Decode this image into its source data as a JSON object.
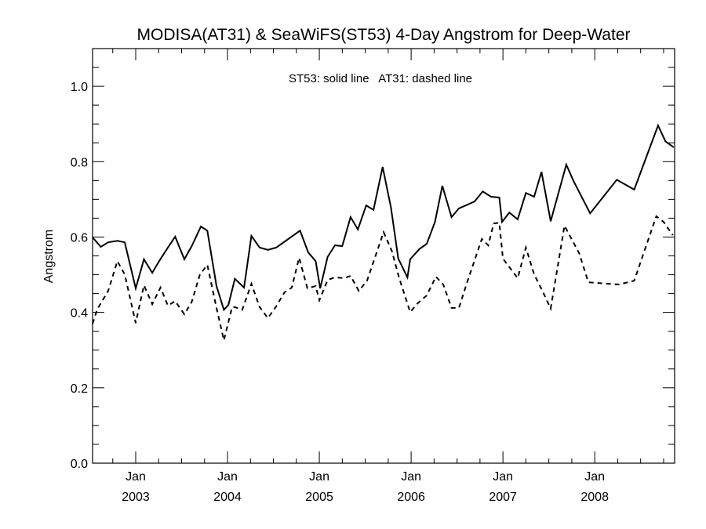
{
  "chart_data": {
    "type": "line",
    "title": "MODISA(AT31) & SeaWiFS(ST53) 4-Day Angstrom for Deep-Water",
    "annotation": "ST53: solid line   AT31: dashed line",
    "xlabel": "",
    "ylabel": "Angstrom",
    "xlim": [
      2002.53,
      2008.87
    ],
    "ylim": [
      0.0,
      1.1
    ],
    "grid": false,
    "y_ticks": [
      {
        "value": 0.0,
        "label": "0.0"
      },
      {
        "value": 0.2,
        "label": "0.2"
      },
      {
        "value": 0.4,
        "label": "0.4"
      },
      {
        "value": 0.6,
        "label": "0.6"
      },
      {
        "value": 0.8,
        "label": "0.8"
      },
      {
        "value": 1.0,
        "label": "1.0"
      }
    ],
    "y_minor_step": 0.05,
    "x_ticks": [
      {
        "value": 2003.0,
        "label_month": "Jan",
        "label_year": "2003"
      },
      {
        "value": 2004.0,
        "label_month": "Jan",
        "label_year": "2004"
      },
      {
        "value": 2005.0,
        "label_month": "Jan",
        "label_year": "2005"
      },
      {
        "value": 2006.0,
        "label_month": "Jan",
        "label_year": "2006"
      },
      {
        "value": 2007.0,
        "label_month": "Jan",
        "label_year": "2007"
      },
      {
        "value": 2008.0,
        "label_month": "Jan",
        "label_year": "2008"
      }
    ],
    "x_minor_step": 0.25,
    "series": [
      {
        "name": "ST53",
        "style": "solid",
        "x": [
          2002.53,
          2002.62,
          2002.7,
          2002.8,
          2002.88,
          2003.0,
          2003.09,
          2003.18,
          2003.26,
          2003.35,
          2003.43,
          2003.53,
          2003.61,
          2003.71,
          2003.78,
          2003.88,
          2003.96,
          2004.01,
          2004.08,
          2004.18,
          2004.26,
          2004.35,
          2004.44,
          2004.53,
          2004.79,
          2004.88,
          2004.96,
          2005.01,
          2005.09,
          2005.17,
          2005.25,
          2005.34,
          2005.42,
          2005.51,
          2005.59,
          2005.69,
          2005.78,
          2005.86,
          2005.96,
          2005.99,
          2006.09,
          2006.17,
          2006.26,
          2006.34,
          2006.44,
          2006.52,
          2006.69,
          2006.78,
          2006.87,
          2006.96,
          2006.99,
          2007.07,
          2007.16,
          2007.25,
          2007.34,
          2007.42,
          2007.52,
          2007.69,
          2007.77,
          2007.95,
          2008.24,
          2008.43,
          2008.69,
          2008.77,
          2008.86
        ],
        "y": [
          0.599,
          0.574,
          0.586,
          0.59,
          0.586,
          0.464,
          0.541,
          0.505,
          0.538,
          0.572,
          0.601,
          0.541,
          0.576,
          0.628,
          0.617,
          0.47,
          0.407,
          0.42,
          0.489,
          0.466,
          0.603,
          0.572,
          0.566,
          0.572,
          0.617,
          0.559,
          0.536,
          0.464,
          0.547,
          0.578,
          0.576,
          0.653,
          0.62,
          0.684,
          0.672,
          0.786,
          0.678,
          0.543,
          0.493,
          0.541,
          0.568,
          0.582,
          0.64,
          0.736,
          0.653,
          0.676,
          0.694,
          0.721,
          0.707,
          0.705,
          0.64,
          0.665,
          0.647,
          0.717,
          0.707,
          0.773,
          0.642,
          0.792,
          0.748,
          0.663,
          0.752,
          0.726,
          0.896,
          0.854,
          0.838
        ]
      },
      {
        "name": "AT31",
        "style": "dashed",
        "x": [
          2002.53,
          2002.58,
          2002.7,
          2002.8,
          2002.88,
          2003.0,
          2003.09,
          2003.18,
          2003.27,
          2003.35,
          2003.43,
          2003.53,
          2003.61,
          2003.7,
          2003.78,
          2003.88,
          2003.96,
          2004.05,
          2004.08,
          2004.16,
          2004.26,
          2004.35,
          2004.44,
          2004.53,
          2004.62,
          2004.7,
          2004.78,
          2004.87,
          2004.96,
          2005.0,
          2005.09,
          2005.17,
          2005.27,
          2005.34,
          2005.43,
          2005.52,
          2005.7,
          2005.79,
          2005.87,
          2005.99,
          2006.07,
          2006.17,
          2006.27,
          2006.35,
          2006.44,
          2006.52,
          2006.61,
          2006.77,
          2006.84,
          2006.9,
          2006.96,
          2007.0,
          2007.16,
          2007.25,
          2007.34,
          2007.43,
          2007.52,
          2007.67,
          2007.83,
          2007.93,
          2008.26,
          2008.43,
          2008.67,
          2008.75,
          2008.85
        ],
        "y": [
          0.37,
          0.408,
          0.457,
          0.536,
          0.501,
          0.372,
          0.472,
          0.422,
          0.466,
          0.418,
          0.43,
          0.395,
          0.428,
          0.501,
          0.526,
          0.412,
          0.326,
          0.414,
          0.414,
          0.407,
          0.476,
          0.414,
          0.385,
          0.416,
          0.453,
          0.466,
          0.545,
          0.464,
          0.47,
          0.432,
          0.486,
          0.493,
          0.491,
          0.497,
          0.457,
          0.484,
          0.613,
          0.563,
          0.491,
          0.401,
          0.424,
          0.445,
          0.495,
          0.474,
          0.412,
          0.412,
          0.48,
          0.595,
          0.578,
          0.636,
          0.638,
          0.543,
          0.491,
          0.572,
          0.501,
          0.457,
          0.41,
          0.63,
          0.557,
          0.48,
          0.474,
          0.484,
          0.655,
          0.64,
          0.605
        ]
      }
    ]
  }
}
